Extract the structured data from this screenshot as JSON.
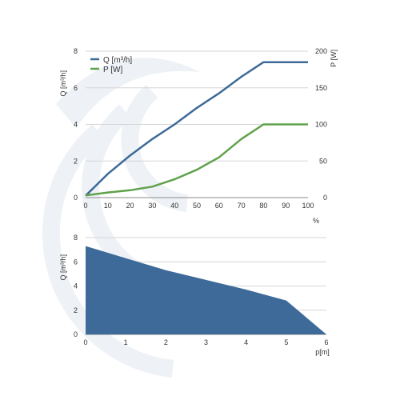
{
  "colors": {
    "flow": "#3d6a99",
    "power": "#5fa24a",
    "area_fill": "#3d6a99",
    "grid": "#d6d6d6",
    "axis": "#8a8a8a",
    "watermark": "#eef1f6"
  },
  "chart_data": [
    {
      "type": "line",
      "x": [
        0,
        10,
        20,
        30,
        40,
        50,
        60,
        70,
        80,
        90,
        100
      ],
      "xlim": [
        0,
        100
      ],
      "x_ticks": [
        "0",
        "10",
        "20",
        "30",
        "40",
        "50",
        "60",
        "70",
        "80",
        "90",
        "100"
      ],
      "xlabel": "%",
      "left_axis": {
        "label": "Q [m³/h]",
        "ylim": [
          0,
          8
        ],
        "ticks": [
          "0",
          "2",
          "4",
          "6",
          "8"
        ]
      },
      "right_axis": {
        "label": "P [W]",
        "ylim": [
          0,
          200
        ],
        "ticks": [
          "0",
          "50",
          "100",
          "150",
          "200"
        ]
      },
      "series": [
        {
          "name": "Q [m³/h]",
          "axis": "left",
          "color": "#3d6a99",
          "values": [
            0.1,
            1.3,
            2.3,
            3.2,
            4.0,
            4.9,
            5.7,
            6.6,
            7.4,
            7.4,
            7.4
          ]
        },
        {
          "name": "P [W]",
          "axis": "right",
          "color": "#5fa24a",
          "values": [
            3,
            7,
            10,
            15,
            25,
            38,
            55,
            80,
            100,
            100,
            100
          ]
        }
      ],
      "legend": "top-left",
      "grid": true
    },
    {
      "type": "area",
      "x": [
        0,
        1,
        2,
        3,
        4,
        5,
        6
      ],
      "xlim": [
        0,
        6
      ],
      "x_ticks": [
        "0",
        "1",
        "2",
        "3",
        "4",
        "5",
        "6"
      ],
      "xlabel": "p[m]",
      "ylabel": "Q [m³/h]",
      "ylim": [
        0,
        8
      ],
      "y_ticks": [
        "0",
        "2",
        "4",
        "6",
        "8"
      ],
      "values": [
        7.3,
        6.3,
        5.3,
        4.5,
        3.7,
        2.8,
        0
      ],
      "color": "#3d6a99",
      "grid": true
    }
  ]
}
